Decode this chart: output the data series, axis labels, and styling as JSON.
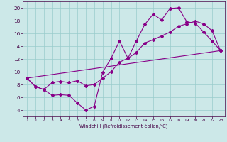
{
  "xlabel": "Windchill (Refroidissement éolien,°C)",
  "background_color": "#cce8e8",
  "line_color": "#880088",
  "xlim": [
    -0.5,
    23.5
  ],
  "ylim": [
    3,
    21
  ],
  "xticks": [
    0,
    1,
    2,
    3,
    4,
    5,
    6,
    7,
    8,
    9,
    10,
    11,
    12,
    13,
    14,
    15,
    16,
    17,
    18,
    19,
    20,
    21,
    22,
    23
  ],
  "yticks": [
    4,
    6,
    8,
    10,
    12,
    14,
    16,
    18,
    20
  ],
  "line1_x": [
    0,
    1,
    2,
    3,
    4,
    5,
    6,
    7,
    8,
    9,
    10,
    11,
    12,
    13,
    14,
    15,
    16,
    17,
    18,
    19,
    20,
    21,
    22,
    23
  ],
  "line1_y": [
    9.0,
    7.7,
    7.2,
    6.3,
    6.4,
    6.3,
    5.1,
    4.0,
    4.6,
    9.9,
    12.1,
    14.8,
    12.1,
    14.8,
    17.4,
    19.0,
    18.1,
    19.9,
    20.0,
    17.8,
    17.6,
    16.2,
    14.8,
    13.3
  ],
  "line2_x": [
    0,
    1,
    2,
    3,
    4,
    5,
    6,
    7,
    8,
    9,
    10,
    11,
    12,
    13,
    14,
    15,
    16,
    17,
    18,
    19,
    20,
    21,
    22,
    23
  ],
  "line2_y": [
    9.0,
    7.7,
    7.2,
    8.3,
    8.5,
    8.3,
    8.6,
    7.8,
    8.0,
    9.0,
    10.0,
    11.5,
    12.1,
    13.0,
    14.5,
    15.0,
    15.6,
    16.2,
    17.1,
    17.5,
    17.9,
    17.5,
    16.4,
    13.3
  ],
  "line3_x": [
    0,
    23
  ],
  "line3_y": [
    9.0,
    13.3
  ]
}
